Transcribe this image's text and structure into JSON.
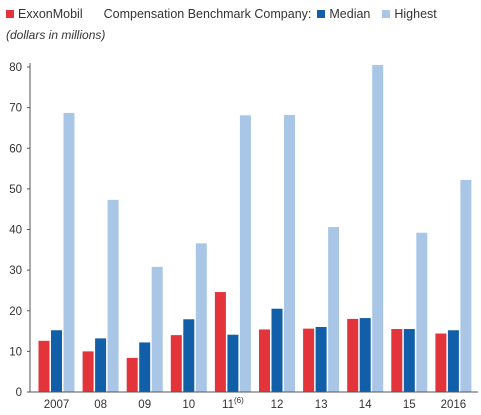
{
  "legend": {
    "exxon": "ExxonMobil",
    "benchmark_label": "Compensation Benchmark Company:",
    "median": "Median",
    "highest": "Highest"
  },
  "unit_note": "(dollars in millions)",
  "colors": {
    "exxon": "#e3343b",
    "median": "#115fa8",
    "highest": "#a9c6e6",
    "axis": "#555555"
  },
  "chart_data": {
    "type": "bar",
    "categories": [
      "2007",
      "08",
      "09",
      "10",
      "11",
      "12",
      "13",
      "14",
      "15",
      "2016"
    ],
    "category_superscripts": [
      "",
      "",
      "",
      "",
      "(6)",
      "",
      "",
      "",
      "",
      ""
    ],
    "series": [
      {
        "name": "ExxonMobil",
        "values": [
          12.6,
          10.0,
          8.4,
          14.0,
          24.6,
          15.4,
          15.6,
          18.0,
          15.5,
          14.4
        ]
      },
      {
        "name": "Median",
        "values": [
          15.2,
          13.2,
          12.2,
          17.9,
          14.1,
          20.5,
          16.0,
          18.2,
          15.5,
          15.2
        ]
      },
      {
        "name": "Highest",
        "values": [
          68.7,
          47.3,
          30.8,
          36.6,
          68.1,
          68.2,
          40.6,
          80.5,
          39.2,
          52.2
        ]
      }
    ],
    "yticks": [
      0,
      10,
      20,
      30,
      40,
      50,
      60,
      70,
      80
    ],
    "ylim": [
      0,
      80
    ],
    "grid": false,
    "legend_position": "top"
  }
}
